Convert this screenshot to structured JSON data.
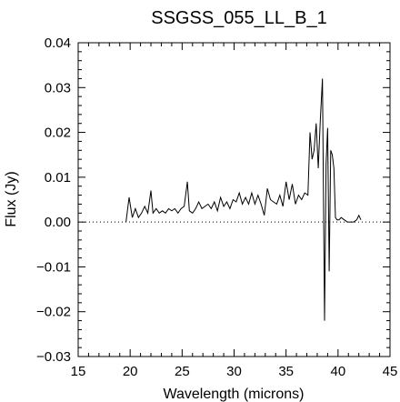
{
  "chart_data": {
    "type": "line",
    "title": "SSGSS_055_LL_B_1",
    "xlabel": "Wavelength (microns)",
    "ylabel": "Flux (Jy)",
    "xlim": [
      15,
      45
    ],
    "ylim": [
      -0.03,
      0.04
    ],
    "x_ticks": [
      "15",
      "20",
      "25",
      "30",
      "35",
      "40",
      "45"
    ],
    "y_ticks": [
      "0.04",
      "0.03",
      "0.02",
      "0.01",
      "0.00",
      "−0.01",
      "−0.02",
      "−0.03"
    ],
    "reference_line": {
      "y": 0.0,
      "style": "dotted"
    },
    "grid": false,
    "series": [
      {
        "x": [
          19.6,
          19.9,
          20.2,
          20.5,
          20.8,
          21.1,
          21.4,
          21.7,
          22.0,
          22.2,
          22.5,
          22.8,
          23.1,
          23.4,
          23.7,
          24.0,
          24.3,
          24.6,
          24.9,
          25.2,
          25.5,
          25.7,
          26.0,
          26.3,
          26.6,
          26.9,
          27.2,
          27.5,
          27.8,
          28.1,
          28.4,
          28.7,
          29.0,
          29.3,
          29.6,
          29.9,
          30.2,
          30.5,
          30.8,
          31.1,
          31.4,
          31.7,
          32.0,
          32.3,
          32.6,
          32.9,
          33.2,
          33.5,
          33.8,
          34.1,
          34.4,
          34.7,
          35.0,
          35.3,
          35.6,
          35.9,
          36.2,
          36.5,
          36.8,
          37.1,
          37.3,
          37.5,
          37.7,
          37.9,
          38.1,
          38.3,
          38.5,
          38.7,
          38.85,
          39.0,
          39.15,
          39.3,
          39.45,
          39.6,
          39.75,
          39.9,
          40.1,
          40.3,
          40.6,
          40.9,
          41.2,
          41.5,
          41.8,
          42.0,
          42.2
        ],
        "y": [
          0.0,
          0.0055,
          0.001,
          0.003,
          0.001,
          0.002,
          0.0035,
          0.002,
          0.007,
          0.002,
          0.003,
          0.002,
          0.0025,
          0.002,
          0.003,
          0.0025,
          0.003,
          0.002,
          0.003,
          0.0035,
          0.009,
          0.0025,
          0.002,
          0.003,
          0.0045,
          0.003,
          0.0035,
          0.004,
          0.003,
          0.0045,
          0.0025,
          0.0055,
          0.0035,
          0.0045,
          0.003,
          0.005,
          0.0045,
          0.0065,
          0.004,
          0.0055,
          0.004,
          0.0065,
          0.004,
          0.006,
          0.004,
          0.0015,
          0.0075,
          0.005,
          0.0045,
          0.004,
          0.006,
          0.0035,
          0.009,
          0.005,
          0.0085,
          0.004,
          0.006,
          0.005,
          0.0065,
          0.006,
          0.02,
          0.014,
          0.016,
          0.022,
          0.012,
          0.023,
          0.032,
          -0.022,
          0.013,
          0.021,
          -0.011,
          0.016,
          0.015,
          0.012,
          0.001,
          0.0005,
          0.0005,
          0.001,
          0.0005,
          0.0,
          0.0,
          0.0,
          0.0005,
          0.0015,
          0.0005
        ]
      }
    ]
  }
}
